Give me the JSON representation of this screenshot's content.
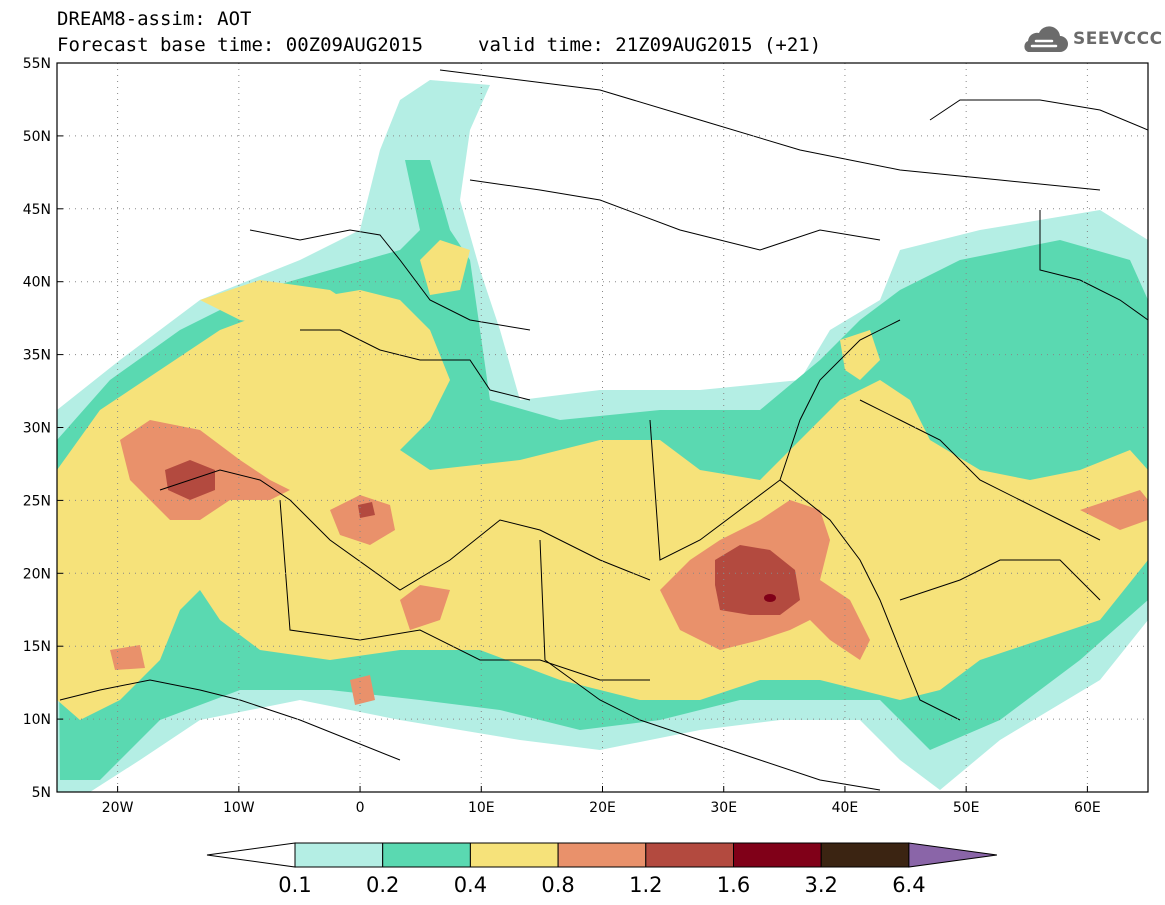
{
  "header": {
    "title": "DREAM8-assim: AOT",
    "base_time": "Forecast base time: 00Z09AUG2015",
    "valid_time": "valid time: 21Z09AUG2015 (+21)"
  },
  "logo": {
    "text": "SEEVCCC",
    "icon": "cloud-icon"
  },
  "map": {
    "lat_ticks": [
      "55N",
      "50N",
      "45N",
      "40N",
      "35N",
      "30N",
      "25N",
      "20N",
      "15N",
      "10N",
      "5N"
    ],
    "lon_ticks": [
      "20W",
      "10W",
      "0",
      "10E",
      "20E",
      "30E",
      "40E",
      "50E",
      "60E"
    ],
    "lat_values": [
      55,
      50,
      45,
      40,
      35,
      30,
      25,
      20,
      15,
      10,
      5
    ],
    "lon_values": [
      -20,
      -10,
      0,
      10,
      20,
      30,
      40,
      50,
      60
    ],
    "lon_range": [
      -25,
      65
    ],
    "lat_range": [
      5,
      55
    ]
  },
  "colorbar": {
    "labels": [
      "0.1",
      "0.2",
      "0.4",
      "0.8",
      "1.2",
      "1.6",
      "3.2",
      "6.4"
    ],
    "colors": [
      "#ffffff",
      "#b4eee4",
      "#5ad9b1",
      "#f6e27a",
      "#e9916b",
      "#b34a3f",
      "#800018",
      "#3b2412",
      "#8a65a8"
    ]
  }
}
